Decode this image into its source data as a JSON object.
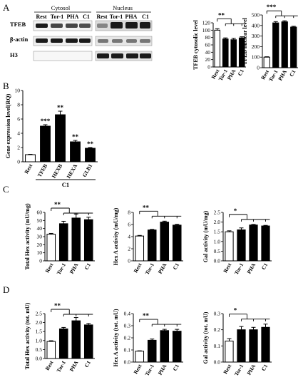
{
  "panel_letters": [
    "A",
    "B",
    "C",
    "D"
  ],
  "blot": {
    "group_labels": [
      "Cytosol",
      "Nucleus"
    ],
    "lanes": [
      "Rest",
      "Tor-1",
      "PHA",
      "C1",
      "Rest",
      "Tor-1",
      "PHA",
      "C1"
    ],
    "rows": [
      "TFEB",
      "β-actin",
      "H3"
    ]
  },
  "stat_marks": {
    "two": "**",
    "three": "***",
    "one": "*"
  },
  "chart_data": [
    {
      "id": "A1",
      "type": "bar",
      "categories": [
        "Rest",
        "Tor-1",
        "PHA",
        "C1"
      ],
      "values": [
        100,
        76,
        74,
        79
      ],
      "errors": [
        4,
        3,
        4,
        3
      ],
      "ylabel": "TFEB cytosolic level",
      "ylim": [
        0,
        120
      ],
      "yticks": [
        0,
        20,
        40,
        60,
        80,
        100,
        120
      ],
      "sig": "**",
      "colors": [
        "#ffffff",
        "#000000",
        "#000000",
        "#000000"
      ]
    },
    {
      "id": "A2",
      "type": "bar",
      "categories": [
        "Rest",
        "Tor-1",
        "PHA",
        "C1"
      ],
      "values": [
        100,
        425,
        435,
        385
      ],
      "errors": [
        4,
        12,
        10,
        8
      ],
      "ylabel": "TFEB nuclear level",
      "ylim": [
        0,
        500
      ],
      "yticks": [
        0,
        100,
        200,
        300,
        400,
        500
      ],
      "sig": "***",
      "colors": [
        "#ffffff",
        "#000000",
        "#000000",
        "#000000"
      ]
    },
    {
      "id": "B",
      "type": "bar",
      "categories": [
        "Rest",
        "TFEB",
        "HEXB",
        "HEXA",
        "GLB1"
      ],
      "values": [
        1.0,
        5.0,
        6.6,
        2.8,
        1.9
      ],
      "errors": [
        0.05,
        0.2,
        0.5,
        0.2,
        0.1
      ],
      "ylabel": "Gene expression level(RQ)",
      "ylim": [
        0,
        10
      ],
      "yticks": [
        0,
        2,
        4,
        6,
        8,
        10
      ],
      "bar_marks": [
        "",
        "***",
        "**",
        "**",
        "**"
      ],
      "group_label": "C1",
      "colors": [
        "#ffffff",
        "#000000",
        "#000000",
        "#000000",
        "#000000"
      ]
    },
    {
      "id": "C1",
      "type": "bar",
      "categories": [
        "Rest",
        "Tor-1",
        "PHA",
        "C1"
      ],
      "values": [
        33,
        46,
        53,
        51
      ],
      "errors": [
        1,
        3,
        5,
        3
      ],
      "ylabel": "Total Hex activity (mU/mg)",
      "ylim": [
        0,
        60
      ],
      "yticks": [
        0,
        10,
        20,
        30,
        40,
        50,
        60
      ],
      "sig": "**",
      "colors": [
        "#ffffff",
        "#000000",
        "#000000",
        "#000000"
      ]
    },
    {
      "id": "C2",
      "type": "bar",
      "categories": [
        "Rest",
        "Tor-1",
        "PHA",
        "C1"
      ],
      "values": [
        4.1,
        5.1,
        6.4,
        5.9
      ],
      "errors": [
        0.1,
        0.1,
        0.15,
        0.15
      ],
      "ylabel": "Hex A activity (mU/mg)",
      "ylim": [
        0,
        8
      ],
      "yticks": [
        0,
        2,
        4,
        6,
        8
      ],
      "sig": "**",
      "colors": [
        "#ffffff",
        "#000000",
        "#000000",
        "#000000"
      ]
    },
    {
      "id": "C3",
      "type": "bar",
      "categories": [
        "Rest",
        "Tor-1",
        "PHA",
        "C1"
      ],
      "values": [
        1.5,
        1.6,
        1.85,
        1.8
      ],
      "errors": [
        0.05,
        0.1,
        0.03,
        0.03
      ],
      "ylabel": "Gal activity (mU/mg)",
      "ylim": [
        0,
        2.5
      ],
      "yticks": [
        0.0,
        0.5,
        1.0,
        1.5,
        2.0,
        2.5
      ],
      "sig": "*",
      "colors": [
        "#ffffff",
        "#000000",
        "#000000",
        "#000000"
      ]
    },
    {
      "id": "D1",
      "type": "bar",
      "categories": [
        "Rest",
        "Tor-1",
        "PHA",
        "C1"
      ],
      "values": [
        0.95,
        1.65,
        2.1,
        1.87
      ],
      "errors": [
        0.04,
        0.08,
        0.18,
        0.08
      ],
      "ylabel": "Total Hex activity (tot. mU)",
      "ylim": [
        0,
        2.5
      ],
      "yticks": [
        0.0,
        0.5,
        1.0,
        1.5,
        2.0,
        2.5
      ],
      "sig": "**",
      "colors": [
        "#ffffff",
        "#000000",
        "#000000",
        "#000000"
      ]
    },
    {
      "id": "D2",
      "type": "bar",
      "categories": [
        "Rest",
        "Tor-1",
        "PHA",
        "C1"
      ],
      "values": [
        0.09,
        0.18,
        0.26,
        0.255
      ],
      "errors": [
        0.003,
        0.01,
        0.01,
        0.015
      ],
      "ylabel": "Hex A activity (tot. mU)",
      "ylim": [
        0,
        0.4
      ],
      "yticks": [
        0.0,
        0.1,
        0.2,
        0.3,
        0.4
      ],
      "sig": "**",
      "colors": [
        "#ffffff",
        "#000000",
        "#000000",
        "#000000"
      ]
    },
    {
      "id": "D3",
      "type": "bar",
      "categories": [
        "Rest",
        "Tor-1",
        "PHA",
        "C1"
      ],
      "values": [
        0.13,
        0.2,
        0.2,
        0.215
      ],
      "errors": [
        0.015,
        0.02,
        0.015,
        0.02
      ],
      "ylabel": "Gal activity (tot. mU)",
      "ylim": [
        0,
        0.3
      ],
      "yticks": [
        0.0,
        0.1,
        0.2,
        0.3
      ],
      "sig": "*",
      "colors": [
        "#ffffff",
        "#000000",
        "#000000",
        "#000000"
      ]
    }
  ]
}
